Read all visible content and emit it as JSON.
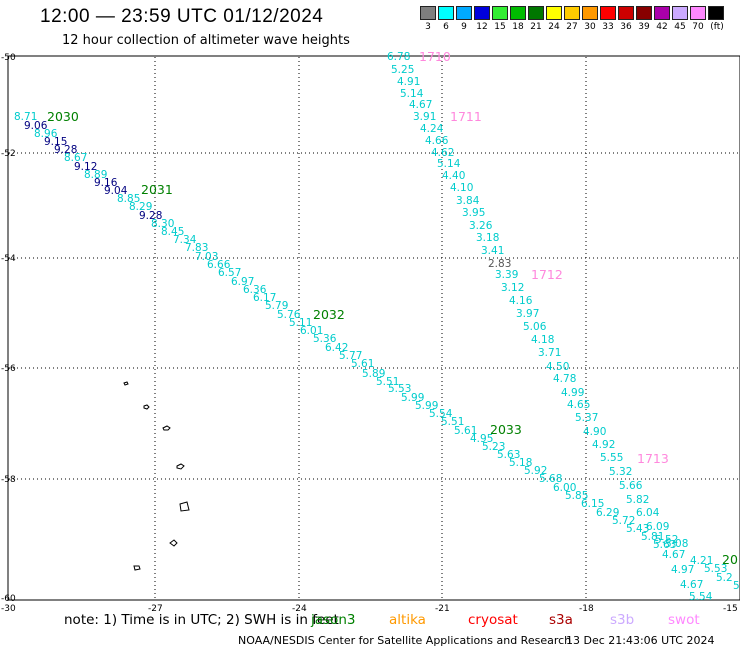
{
  "header": {
    "title": "12:00 — 23:59 UTC 01/12/2024",
    "subtitle": "12 hour collection of altimeter wave heights"
  },
  "legend": {
    "unit": "(ft)",
    "items": [
      {
        "label": "3",
        "color": "#7f7f7f"
      },
      {
        "label": "6",
        "color": "#00ffff"
      },
      {
        "label": "9",
        "color": "#00aaff"
      },
      {
        "label": "12",
        "color": "#0000dd"
      },
      {
        "label": "15",
        "color": "#33ee33"
      },
      {
        "label": "18",
        "color": "#00bb00"
      },
      {
        "label": "21",
        "color": "#007700"
      },
      {
        "label": "24",
        "color": "#ffff00"
      },
      {
        "label": "27",
        "color": "#ffcc00"
      },
      {
        "label": "30",
        "color": "#ff9900"
      },
      {
        "label": "33",
        "color": "#ff0000"
      },
      {
        "label": "36",
        "color": "#cc0000"
      },
      {
        "label": "39",
        "color": "#880000"
      },
      {
        "label": "42",
        "color": "#aa00aa"
      },
      {
        "label": "45",
        "color": "#ccaaff"
      },
      {
        "label": "70",
        "color": "#ff88ff"
      },
      {
        "label": "",
        "color": "#000000"
      }
    ]
  },
  "map_data": {
    "lat_ticks": [
      "-50",
      "-52",
      "-54",
      "-56",
      "-58",
      "-60"
    ],
    "lon_ticks": [
      "-30",
      "-27",
      "-24",
      "-21",
      "-18",
      "-15"
    ],
    "passes": [
      {
        "label": "2030",
        "color": "#008000"
      },
      {
        "label": "2031",
        "color": "#008000"
      },
      {
        "label": "2032",
        "color": "#008000"
      },
      {
        "label": "2033",
        "color": "#008000"
      },
      {
        "label": "20",
        "color": "#008000"
      },
      {
        "label": "1710",
        "color": "#ff88dd"
      },
      {
        "label": "1711",
        "color": "#ff88dd"
      },
      {
        "label": "1712",
        "color": "#ff88dd"
      },
      {
        "label": "1713",
        "color": "#ff88dd"
      }
    ],
    "track_a": [
      {
        "v": "8.71",
        "c": "#00cccc"
      },
      {
        "v": "9.06",
        "c": "#000080"
      },
      {
        "v": "8.96",
        "c": "#00cccc"
      },
      {
        "v": "9.15",
        "c": "#000080"
      },
      {
        "v": "9.28",
        "c": "#000080"
      },
      {
        "v": "8.67",
        "c": "#00cccc"
      },
      {
        "v": "9.12",
        "c": "#000080"
      },
      {
        "v": "8.89",
        "c": "#00cccc"
      },
      {
        "v": "9.16",
        "c": "#000080"
      },
      {
        "v": "9.04",
        "c": "#000080"
      },
      {
        "v": "8.85",
        "c": "#00cccc"
      },
      {
        "v": "8.29",
        "c": "#00cccc"
      },
      {
        "v": "9.28",
        "c": "#000080"
      },
      {
        "v": "8.30",
        "c": "#00cccc"
      },
      {
        "v": "8.45",
        "c": "#00cccc"
      },
      {
        "v": "7.34",
        "c": "#00cccc"
      },
      {
        "v": "7.83",
        "c": "#00cccc"
      },
      {
        "v": "7.03",
        "c": "#00cccc"
      },
      {
        "v": "6.66",
        "c": "#00cccc"
      },
      {
        "v": "6.57",
        "c": "#00cccc"
      },
      {
        "v": "6.97",
        "c": "#00cccc"
      },
      {
        "v": "6.36",
        "c": "#00cccc"
      },
      {
        "v": "6.17",
        "c": "#00cccc"
      },
      {
        "v": "5.79",
        "c": "#00cccc"
      },
      {
        "v": "5.76",
        "c": "#00cccc"
      },
      {
        "v": "5.11",
        "c": "#00cccc"
      },
      {
        "v": "6.01",
        "c": "#00cccc"
      },
      {
        "v": "5.36",
        "c": "#00cccc"
      },
      {
        "v": "6.42",
        "c": "#00cccc"
      },
      {
        "v": "5.77",
        "c": "#00cccc"
      },
      {
        "v": "5.61",
        "c": "#00cccc"
      },
      {
        "v": "5.89",
        "c": "#00cccc"
      },
      {
        "v": "5.51",
        "c": "#00cccc"
      },
      {
        "v": "5.53",
        "c": "#00cccc"
      },
      {
        "v": "5.99",
        "c": "#00cccc"
      },
      {
        "v": "5.99",
        "c": "#00cccc"
      },
      {
        "v": "5.54",
        "c": "#00cccc"
      },
      {
        "v": "5.51",
        "c": "#00cccc"
      },
      {
        "v": "5.61",
        "c": "#00cccc"
      },
      {
        "v": "4.95",
        "c": "#00cccc"
      },
      {
        "v": "5.23",
        "c": "#00cccc"
      },
      {
        "v": "5.63",
        "c": "#00cccc"
      },
      {
        "v": "5.18",
        "c": "#00cccc"
      },
      {
        "v": "5.92",
        "c": "#00cccc"
      },
      {
        "v": "5.68",
        "c": "#00cccc"
      },
      {
        "v": "6.00",
        "c": "#00cccc"
      },
      {
        "v": "5.85",
        "c": "#00cccc"
      },
      {
        "v": "6.15",
        "c": "#00cccc"
      },
      {
        "v": "6.29",
        "c": "#00cccc"
      },
      {
        "v": "5.72",
        "c": "#00cccc"
      },
      {
        "v": "5.43",
        "c": "#00cccc"
      },
      {
        "v": "5.81",
        "c": "#00cccc"
      },
      {
        "v": "5.63",
        "c": "#00cccc"
      },
      {
        "v": "4.67",
        "c": "#00cccc"
      },
      {
        "v": "4.21",
        "c": "#00cccc"
      },
      {
        "v": "4.97",
        "c": "#00cccc"
      },
      {
        "v": "5.53",
        "c": "#00cccc"
      },
      {
        "v": "5.2",
        "c": "#00cccc"
      },
      {
        "v": "5",
        "c": "#00cccc"
      },
      {
        "v": "4.67",
        "c": "#00cccc"
      },
      {
        "v": "5.54",
        "c": "#00cccc"
      }
    ],
    "track_b": [
      {
        "v": "6.78",
        "c": "#00cccc"
      },
      {
        "v": "5.25",
        "c": "#00cccc"
      },
      {
        "v": "4.91",
        "c": "#00cccc"
      },
      {
        "v": "5.14",
        "c": "#00cccc"
      },
      {
        "v": "4.67",
        "c": "#00cccc"
      },
      {
        "v": "3.91",
        "c": "#00cccc"
      },
      {
        "v": "4.24",
        "c": "#00cccc"
      },
      {
        "v": "4.66",
        "c": "#00cccc"
      },
      {
        "v": "4.62",
        "c": "#00cccc"
      },
      {
        "v": "5.14",
        "c": "#00cccc"
      },
      {
        "v": "4.40",
        "c": "#00cccc"
      },
      {
        "v": "4.10",
        "c": "#00cccc"
      },
      {
        "v": "3.84",
        "c": "#00cccc"
      },
      {
        "v": "3.95",
        "c": "#00cccc"
      },
      {
        "v": "3.26",
        "c": "#00cccc"
      },
      {
        "v": "3.18",
        "c": "#00cccc"
      },
      {
        "v": "3.41",
        "c": "#00cccc"
      },
      {
        "v": "2.83",
        "c": "#555555"
      },
      {
        "v": "3.39",
        "c": "#00cccc"
      },
      {
        "v": "3.12",
        "c": "#00cccc"
      },
      {
        "v": "4.16",
        "c": "#00cccc"
      },
      {
        "v": "3.97",
        "c": "#00cccc"
      },
      {
        "v": "5.06",
        "c": "#00cccc"
      },
      {
        "v": "4.18",
        "c": "#00cccc"
      },
      {
        "v": "3.71",
        "c": "#00cccc"
      },
      {
        "v": "4.50",
        "c": "#00cccc"
      },
      {
        "v": "4.78",
        "c": "#00cccc"
      },
      {
        "v": "4.99",
        "c": "#00cccc"
      },
      {
        "v": "4.65",
        "c": "#00cccc"
      },
      {
        "v": "5.37",
        "c": "#00cccc"
      },
      {
        "v": "4.90",
        "c": "#00cccc"
      },
      {
        "v": "4.92",
        "c": "#00cccc"
      },
      {
        "v": "5.55",
        "c": "#00cccc"
      },
      {
        "v": "5.32",
        "c": "#00cccc"
      },
      {
        "v": "5.66",
        "c": "#00cccc"
      },
      {
        "v": "5.82",
        "c": "#00cccc"
      },
      {
        "v": "6.04",
        "c": "#00cccc"
      },
      {
        "v": "6.09",
        "c": "#00cccc"
      },
      {
        "v": "5.52",
        "c": "#00cccc"
      },
      {
        "v": "5.08",
        "c": "#00cccc"
      }
    ]
  },
  "footer": {
    "note": "note: 1) Time is in UTC; 2) SWH is in feet",
    "satellites": [
      {
        "name": "jason3",
        "color": "#008000"
      },
      {
        "name": "altika",
        "color": "#ff9900"
      },
      {
        "name": "cryosat",
        "color": "#ff0000"
      },
      {
        "name": "s3a",
        "color": "#aa0000"
      },
      {
        "name": "s3b",
        "color": "#ccaaff"
      },
      {
        "name": "swot",
        "color": "#ff88ff"
      }
    ],
    "credit": "NOAA/NESDIS Center for Satellite Applications and Research",
    "timestamp": "13 Dec 21:43:06 UTC 2024"
  }
}
